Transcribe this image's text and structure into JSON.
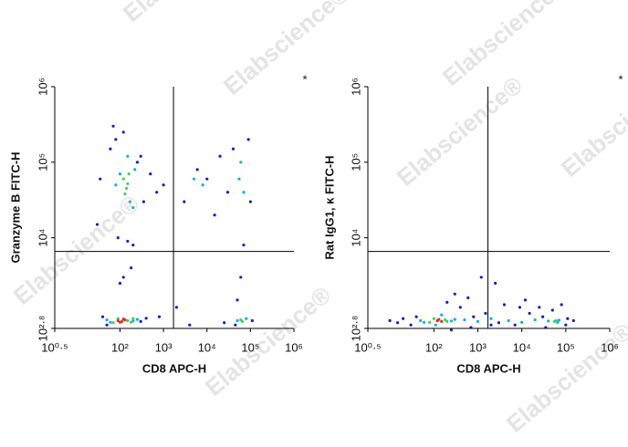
{
  "watermark": "Elabscience®",
  "chart_data": [
    {
      "type": "scatter",
      "log": true,
      "annotation": "*",
      "xlabel": "CD8 APC-H",
      "ylabel": "Granzyme B FITC-H",
      "xlim": [
        3.162,
        1000000
      ],
      "ylim": [
        631,
        1000000
      ],
      "xticks": [
        {
          "value": 3.162,
          "label": "10⁰·⁵"
        },
        {
          "value": 100,
          "label": "10²"
        },
        {
          "value": 1000,
          "label": "10³"
        },
        {
          "value": 10000,
          "label": "10⁴"
        },
        {
          "value": 100000,
          "label": "10⁵"
        },
        {
          "value": 1000000,
          "label": "10⁶"
        }
      ],
      "yticks": [
        {
          "value": 631,
          "label": "10²·⁸"
        },
        {
          "value": 10000,
          "label": "10⁴"
        },
        {
          "value": 100000,
          "label": "10⁵"
        },
        {
          "value": 1000000,
          "label": "10⁶"
        }
      ],
      "quadrant_x": 1700,
      "quadrant_y": 6600,
      "series": [
        {
          "color": "#1e1ec8",
          "x": [
            40,
            50,
            300,
            400,
            30,
            35,
            60,
            80,
            250,
            350,
            120,
            90,
            200,
            500,
            700,
            1000,
            3000,
            6000,
            10000,
            20000,
            30000,
            15000,
            40000,
            90000,
            100000,
            70000,
            50000,
            45000,
            800,
            2000,
            4000,
            25000,
            60000,
            110000,
            120,
            180,
            150,
            300,
            70,
            100
          ],
          "y": [
            900,
            700,
            780,
            860,
            15000,
            60000,
            150000,
            200000,
            100000,
            30000,
            250000,
            10000,
            8000,
            70000,
            40000,
            50000,
            30000,
            80000,
            60000,
            120000,
            40000,
            20000,
            150000,
            200000,
            30000,
            8000,
            1500,
            700,
            900,
            1200,
            700,
            750,
            3000,
            800,
            3000,
            4000,
            9000,
            120000,
            300000,
            2500
          ]
        },
        {
          "color": "#10b0e0",
          "x": [
            50,
            60,
            200,
            250,
            80,
            100,
            170,
            220,
            55000,
            70000,
            50000,
            80000,
            5000,
            8000,
            60000,
            200,
            150
          ],
          "y": [
            820,
            760,
            790,
            830,
            50000,
            70000,
            30000,
            80000,
            60000,
            40000,
            800,
            850,
            60000,
            50000,
            100000,
            25000,
            120000
          ]
        },
        {
          "color": "#40d060",
          "x": [
            70,
            90,
            150,
            180,
            200,
            60000,
            65000,
            120,
            140,
            160,
            150,
            130
          ],
          "y": [
            750,
            850,
            800,
            760,
            850,
            820,
            780,
            60000,
            45000,
            70000,
            52000,
            38000
          ]
        },
        {
          "color": "#e03020",
          "x": [
            90,
            110,
            130,
            100,
            120
          ],
          "y": [
            800,
            780,
            820,
            760,
            840
          ]
        }
      ]
    },
    {
      "type": "scatter",
      "log": true,
      "annotation": "*",
      "xlabel": "CD8 APC-H",
      "ylabel": "Rat IgG1, κ FITC-H",
      "xlim": [
        3.162,
        1000000
      ],
      "ylim": [
        631,
        1000000
      ],
      "xticks": [
        {
          "value": 3.162,
          "label": "10⁰·⁵"
        },
        {
          "value": 100,
          "label": "10²"
        },
        {
          "value": 1000,
          "label": "10³"
        },
        {
          "value": 10000,
          "label": "10⁴"
        },
        {
          "value": 100000,
          "label": "10⁵"
        },
        {
          "value": 1000000,
          "label": "10⁶"
        }
      ],
      "yticks": [
        {
          "value": 631,
          "label": "10²·⁸"
        },
        {
          "value": 10000,
          "label": "10⁴"
        },
        {
          "value": 100000,
          "label": "10⁵"
        },
        {
          "value": 1000000,
          "label": "10⁶"
        }
      ],
      "quadrant_x": 1700,
      "quadrant_y": 6600,
      "series": [
        {
          "color": "#1e1ec8",
          "x": [
            10,
            15,
            20,
            30,
            40,
            800,
            1500,
            3000,
            7000,
            15000,
            30000,
            100000,
            110000,
            200,
            300,
            400,
            600,
            2500,
            4000,
            12000,
            25000,
            50000,
            80000,
            1200,
            2000,
            700,
            35000,
            150000,
            9000,
            250
          ],
          "y": [
            800,
            750,
            850,
            700,
            900,
            900,
            1000,
            750,
            700,
            1000,
            900,
            700,
            850,
            1400,
            1800,
            1200,
            1600,
            2500,
            1300,
            1500,
            1200,
            1100,
            1300,
            3000,
            700,
            650,
            650,
            800,
            1200,
            600
          ]
        },
        {
          "color": "#10b0e0",
          "x": [
            50,
            60,
            250,
            300,
            500,
            1000,
            2000,
            5000,
            10000,
            20000,
            40000,
            70000,
            65000,
            150,
            110
          ],
          "y": [
            800,
            760,
            790,
            830,
            820,
            780,
            850,
            800,
            760,
            820,
            790,
            810,
            760,
            950,
            700
          ]
        },
        {
          "color": "#40d060",
          "x": [
            80,
            100,
            180,
            200,
            60000,
            55000
          ],
          "y": [
            760,
            850,
            820,
            780,
            800,
            780
          ]
        },
        {
          "color": "#e03020",
          "x": [
            120,
            150,
            130
          ],
          "y": [
            800,
            780,
            830
          ]
        }
      ]
    }
  ]
}
